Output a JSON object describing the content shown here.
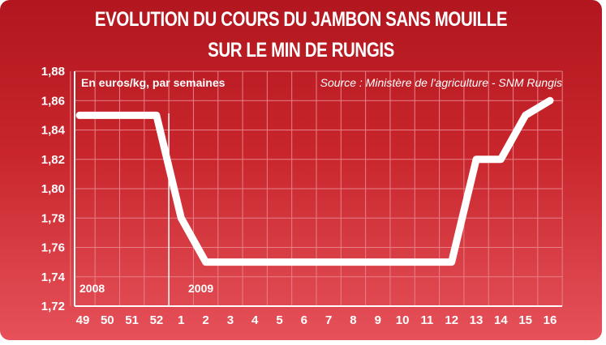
{
  "chart_data": {
    "type": "line",
    "title": "EVOLUTION DU COURS DU JAMBON SANS MOUILLE",
    "subtitle": "SUR LE MIN DE RUNGIS",
    "unit_label": "En euros/kg, par semaines",
    "source": "Source : Ministère de l'agriculture - SNM Rungis",
    "year_labels": [
      "2008",
      "2009"
    ],
    "categories": [
      "49",
      "50",
      "51",
      "52",
      "1",
      "2",
      "3",
      "4",
      "5",
      "6",
      "7",
      "8",
      "9",
      "10",
      "11",
      "12",
      "13",
      "14",
      "15",
      "16"
    ],
    "y_ticks": [
      "1,72",
      "1,74",
      "1,76",
      "1,78",
      "1,80",
      "1,82",
      "1,84",
      "1,86",
      "1,88"
    ],
    "ylim": [
      1.72,
      1.88
    ],
    "series": [
      {
        "values": [
          1.85,
          1.85,
          1.85,
          1.85,
          1.78,
          1.75,
          1.75,
          1.75,
          1.75,
          1.75,
          1.75,
          1.75,
          1.75,
          1.75,
          1.75,
          1.75,
          1.82,
          1.82,
          1.85,
          1.86
        ]
      }
    ],
    "grid": "vertical and horizontal",
    "line_color": "#ffffff"
  },
  "colors": {
    "background_top": "#b2161e",
    "background_bottom": "#e6515a",
    "grid": "#e88088",
    "text": "#ffffff"
  }
}
